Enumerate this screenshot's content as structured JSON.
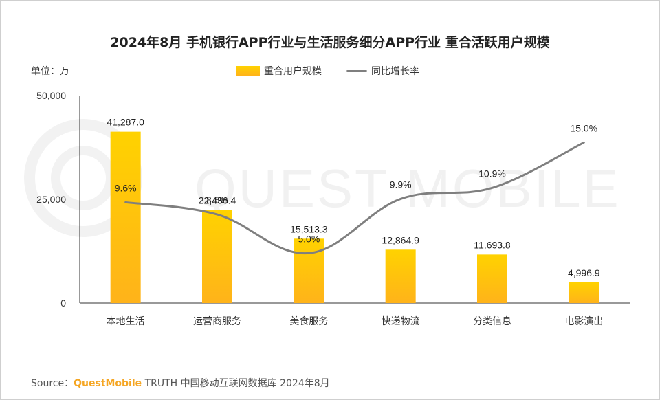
{
  "title": "2024年8月 手机银行APP行业与生活服务细分APP行业 重合活跃用户规模",
  "unit_label": "单位：万",
  "legend": {
    "bar": "重合用户规模",
    "line": "同比增长率"
  },
  "watermark": "QUEST MOBILE",
  "source": {
    "prefix": "Source：",
    "brand": "QuestMobile",
    "rest": " TRUTH 中国移动互联网数据库 2024年8月"
  },
  "colors": {
    "bar_top": "#FFD200",
    "bar_bottom": "#FFB31A",
    "line": "#7f7f7f",
    "brand": "#F5A623"
  },
  "chart_data": {
    "type": "bar",
    "categories": [
      "本地生活",
      "运营商服务",
      "美食服务",
      "快递物流",
      "分类信息",
      "电影演出"
    ],
    "series": [
      {
        "name": "重合用户规模",
        "type": "bar",
        "values": [
          41287.0,
          22436.4,
          15513.3,
          12864.9,
          11693.8,
          4996.9
        ],
        "labels": [
          "41,287.0",
          "22,436.4",
          "15,513.3",
          "12,864.9",
          "11,693.8",
          "4,996.9"
        ]
      },
      {
        "name": "同比增长率",
        "type": "line",
        "values": [
          9.6,
          8.5,
          5.0,
          9.9,
          10.9,
          15.0
        ],
        "labels": [
          "9.6%",
          "8.5%",
          "5.0%",
          "9.9%",
          "10.9%",
          "15.0%"
        ]
      }
    ],
    "ylim": [
      0,
      50000
    ],
    "yticks": [
      0,
      25000,
      50000
    ],
    "ytick_labels": [
      "0",
      "25,000",
      "50,000"
    ],
    "legend_position": "top",
    "grid": false
  }
}
